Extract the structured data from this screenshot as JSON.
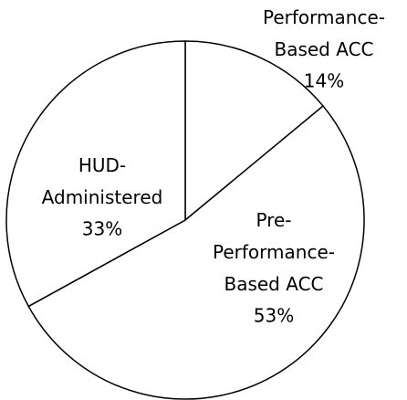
{
  "chart_data": {
    "type": "pie",
    "categories": [
      "Performance-Based ACC",
      "Pre-Performance-Based ACC",
      "HUD-Administered"
    ],
    "values": [
      14,
      53,
      33
    ],
    "value_labels": [
      "14%",
      "53%",
      "33%"
    ],
    "color": "#ffffff"
  }
}
